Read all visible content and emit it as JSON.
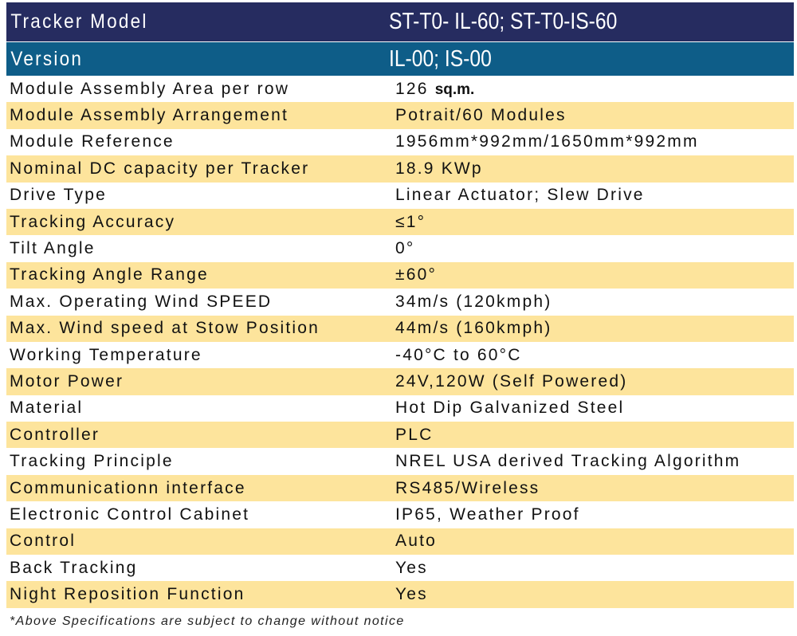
{
  "header": [
    {
      "label": "Tracker Model",
      "value": "ST-T0- IL-60; ST-T0-IS-60"
    },
    {
      "label": "Version",
      "value": "IL-00; IS-00"
    }
  ],
  "area": {
    "label": "Module Assembly Area per row",
    "value": "126",
    "unit": "sq.m."
  },
  "rows": [
    {
      "label": "Module Assembly Arrangement",
      "value": "Potrait/60 Modules"
    },
    {
      "label": "Module Reference",
      "value": "1956mm*992mm/1650mm*992mm"
    },
    {
      "label": "Nominal DC capacity per Tracker",
      "value": "18.9 KWp"
    },
    {
      "label": "Drive Type",
      "value": "Linear Actuator; Slew Drive"
    },
    {
      "label": "Tracking Accuracy",
      "value": "≤1°"
    },
    {
      "label": "Tilt Angle",
      "value": "0°"
    },
    {
      "label": "Tracking Angle Range",
      "value": "±60°"
    },
    {
      "label": "Max. Operating Wind SPEED",
      "value": "34m/s (120kmph)"
    },
    {
      "label": "Max. Wind speed at Stow Position",
      "value": "44m/s (160kmph)"
    },
    {
      "label": "Working Temperature",
      "value": "-40°C to 60°C"
    },
    {
      "label": "Motor Power",
      "value": "24V,120W (Self Powered)"
    },
    {
      "label": "Material",
      "value": "Hot Dip Galvanized Steel"
    },
    {
      "label": "Controller",
      "value": "PLC"
    },
    {
      "label": "Tracking Principle",
      "value": "NREL USA derived Tracking Algorithm"
    },
    {
      "label": "Communicationn interface",
      "value": "RS485/Wireless"
    },
    {
      "label": "Electronic Control Cabinet",
      "value": "IP65, Weather Proof"
    },
    {
      "label": "Control",
      "value": "Auto"
    },
    {
      "label": "Back Tracking",
      "value": "Yes"
    },
    {
      "label": "Night Reposition Function",
      "value": "Yes"
    }
  ],
  "footnote": "*Above Specifications are subject to change without notice",
  "colors": {
    "header_dark": "#262c60",
    "header_blue": "#0e5d88",
    "stripe": "#fde49c"
  }
}
